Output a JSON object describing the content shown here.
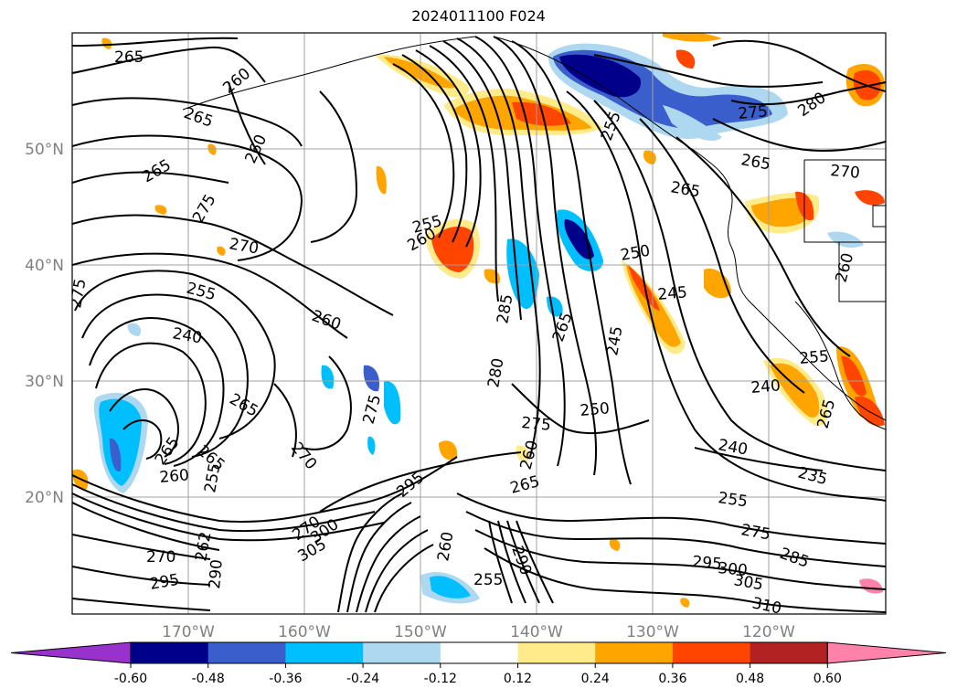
{
  "title": "2024011100 F024",
  "map": {
    "lat_labels": [
      "50°N",
      "40°N",
      "30°N",
      "20°N"
    ],
    "lon_labels": [
      "170°W",
      "160°W",
      "150°W",
      "140°W",
      "130°W",
      "120°W"
    ],
    "contour_labels": [
      "265",
      "260",
      "265",
      "260",
      "265",
      "275",
      "270",
      "275",
      "255",
      "240",
      "265",
      "270",
      "260",
      "255",
      "260",
      "285",
      "280",
      "275",
      "265",
      "245",
      "250",
      "255",
      "275",
      "280",
      "265",
      "270",
      "260",
      "250",
      "245",
      "240",
      "235",
      "255",
      "275",
      "285",
      "295",
      "300",
      "305",
      "310",
      "290",
      "300",
      "305",
      "295",
      "290",
      "270",
      "262",
      "255",
      "260",
      "265"
    ]
  },
  "colorbar": {
    "tick_labels": [
      "-0.60",
      "-0.48",
      "-0.36",
      "-0.24",
      "-0.12",
      "0.12",
      "0.24",
      "0.36",
      "0.48",
      "0.60"
    ],
    "colors": [
      "#9932CC",
      "#00008B",
      "#3A5FCD",
      "#00BFFF",
      "#ADD8F0",
      "#FFFFFF",
      "#FFEB8A",
      "#FFA500",
      "#FF4500",
      "#B22222",
      "#FF82AB"
    ]
  }
}
